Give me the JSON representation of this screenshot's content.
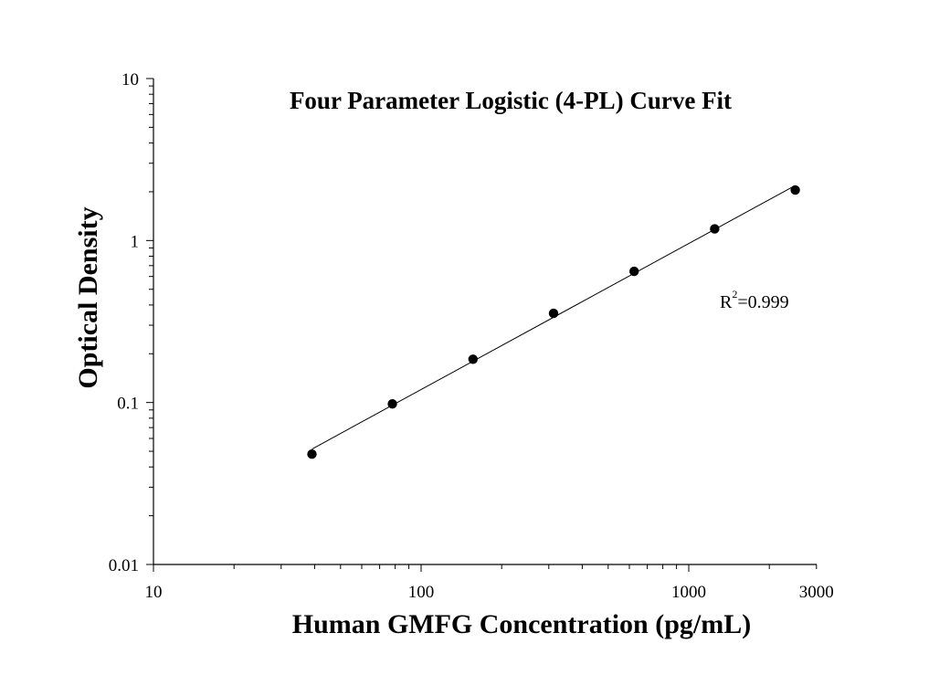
{
  "chart_data": {
    "type": "scatter",
    "title": "Four Parameter Logistic (4-PL) Curve Fit",
    "xlabel": "Human GMFG Concentration (pg/mL)",
    "ylabel": "Optical Density",
    "x_scale": "log",
    "y_scale": "log",
    "xlim": [
      10,
      3000
    ],
    "ylim": [
      0.01,
      10
    ],
    "x_tick_labels": [
      {
        "value": 10,
        "label": "10"
      },
      {
        "value": 100,
        "label": "100"
      },
      {
        "value": 1000,
        "label": "1000"
      },
      {
        "value": 3000,
        "label": "3000"
      }
    ],
    "y_tick_labels": [
      {
        "value": 0.01,
        "label": "0.01"
      },
      {
        "value": 0.1,
        "label": "0.1"
      },
      {
        "value": 1,
        "label": "1"
      },
      {
        "value": 10,
        "label": "10"
      }
    ],
    "grid": false,
    "legend": "none",
    "annotation": {
      "base": "R",
      "sup": "2",
      "rest": "=0.999"
    },
    "series": [
      {
        "points": [
          {
            "x": 39.1,
            "y": 0.048
          },
          {
            "x": 78.1,
            "y": 0.098
          },
          {
            "x": 156.3,
            "y": 0.185
          },
          {
            "x": 312.5,
            "y": 0.355
          },
          {
            "x": 625,
            "y": 0.645
          },
          {
            "x": 1250,
            "y": 1.18
          },
          {
            "x": 2500,
            "y": 2.05
          }
        ],
        "fit": "4-PL",
        "marker_color": "#000000",
        "line_color": "#000000"
      }
    ]
  }
}
